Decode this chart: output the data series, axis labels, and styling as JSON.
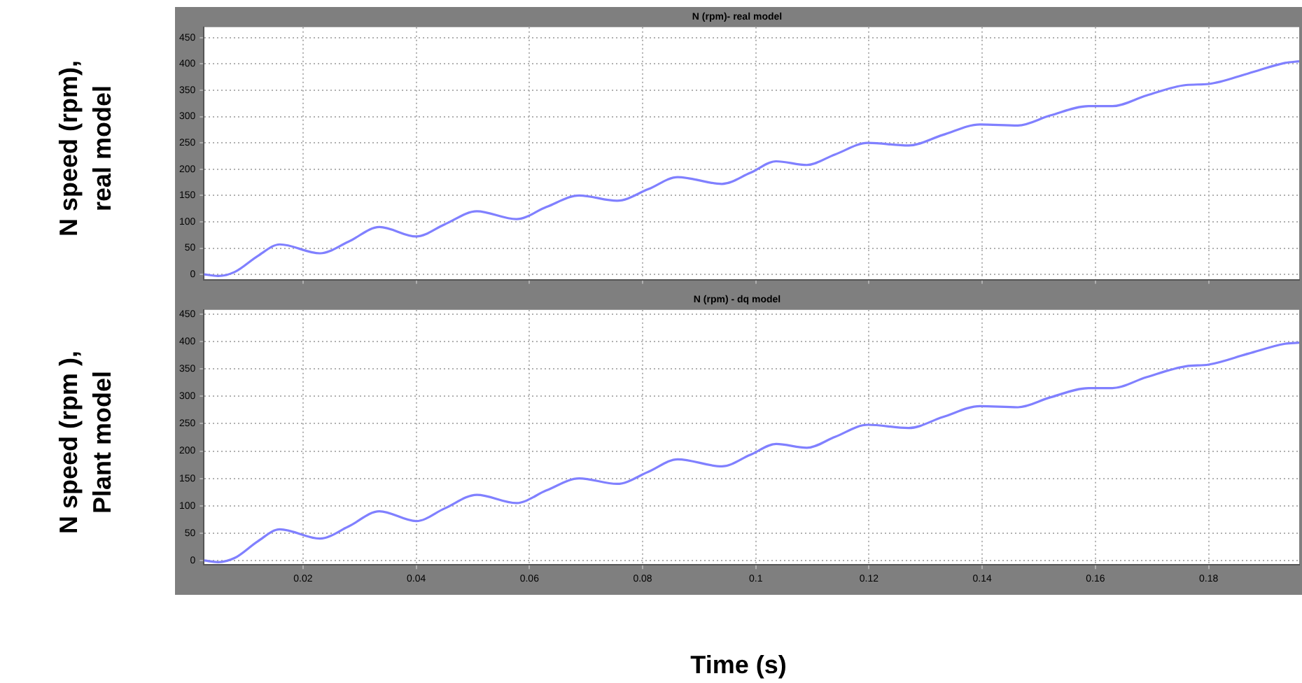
{
  "chart_data": [
    {
      "type": "line",
      "title": "N (rpm)- real model",
      "ylabel": "N speed (rpm), real model",
      "color": "#8080ff",
      "x": [
        0.0025,
        0.005,
        0.008,
        0.012,
        0.0159,
        0.023,
        0.028,
        0.0335,
        0.04,
        0.045,
        0.0507,
        0.0577,
        0.063,
        0.0688,
        0.0755,
        0.081,
        0.0862,
        0.094,
        0.099,
        0.1036,
        0.109,
        0.114,
        0.1198,
        0.127,
        0.133,
        0.1396,
        0.1463,
        0.152,
        0.1588,
        0.163,
        0.169,
        0.176,
        0.18,
        0.187,
        0.1935,
        0.196
      ],
      "values": [
        0,
        -3,
        5,
        35,
        57,
        40,
        62,
        90,
        72,
        95,
        120,
        105,
        128,
        150,
        140,
        162,
        185,
        172,
        193,
        215,
        208,
        228,
        250,
        245,
        265,
        285,
        283,
        302,
        320,
        320,
        340,
        360,
        362,
        382,
        402,
        405
      ],
      "xlim": [
        0.0025,
        0.196
      ],
      "ylim": [
        -10,
        470
      ],
      "xticks": [
        0.02,
        0.04,
        0.06,
        0.08,
        0.1,
        0.12,
        0.14,
        0.16,
        0.18
      ],
      "yticks": [
        0,
        50,
        100,
        150,
        200,
        250,
        300,
        350,
        400,
        450
      ],
      "grid": true,
      "tick_labels": "y"
    },
    {
      "type": "line",
      "title": "N (rpm) - dq model",
      "ylabel": "N speed (rpm ), Plant model",
      "xlabel": "Time (s)",
      "color": "#8080ff",
      "x": [
        0.0025,
        0.005,
        0.008,
        0.012,
        0.0159,
        0.023,
        0.028,
        0.0335,
        0.04,
        0.045,
        0.0507,
        0.0577,
        0.063,
        0.0688,
        0.0755,
        0.081,
        0.0862,
        0.094,
        0.099,
        0.1036,
        0.109,
        0.114,
        0.1198,
        0.127,
        0.133,
        0.1396,
        0.1463,
        0.152,
        0.1588,
        0.163,
        0.169,
        0.176,
        0.18,
        0.187,
        0.1935,
        0.196
      ],
      "values": [
        0,
        -3,
        5,
        35,
        57,
        40,
        62,
        90,
        72,
        95,
        120,
        105,
        128,
        150,
        140,
        162,
        185,
        172,
        193,
        213,
        206,
        226,
        248,
        242,
        262,
        282,
        280,
        298,
        315,
        315,
        335,
        355,
        358,
        378,
        396,
        398
      ],
      "xlim": [
        0.0025,
        0.196
      ],
      "ylim": [
        -8,
        458
      ],
      "xticks": [
        0.02,
        0.04,
        0.06,
        0.08,
        0.1,
        0.12,
        0.14,
        0.16,
        0.18
      ],
      "yticks": [
        0,
        50,
        100,
        150,
        200,
        250,
        300,
        350,
        400,
        450
      ],
      "grid": true
    }
  ]
}
